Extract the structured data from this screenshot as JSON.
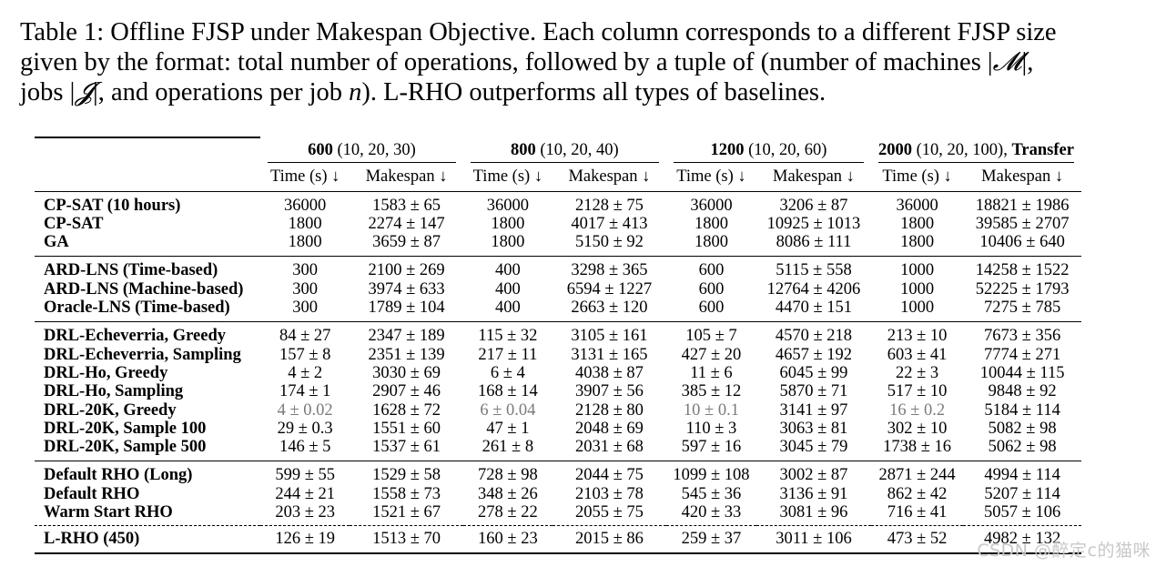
{
  "caption": {
    "line1": "Table 1: Offline FJSP under Makespan Objective. Each column corresponds to a different FJSP size",
    "line2_a": "given by the format: total number of operations, followed by a tuple of (number of machines |",
    "line2_M": "𝓜",
    "line2_b": "|,",
    "line3_a": "jobs |",
    "line3_J": "𝓙",
    "line3_b": "|, and operations per job ",
    "line3_n": "n",
    "line3_c": "). L-RHO outperforms all types of baselines."
  },
  "table": {
    "groups": [
      {
        "bold": "600",
        "rest": " (10, 20, 30)",
        "suffix": ""
      },
      {
        "bold": "800",
        "rest": " (10, 20, 40)",
        "suffix": ""
      },
      {
        "bold": "1200",
        "rest": " (10, 20, 60)",
        "suffix": ""
      },
      {
        "bold": "2000",
        "rest": " (10, 20, 100), ",
        "suffix": "Transfer"
      }
    ],
    "subheaders": [
      "Time (s) ↓",
      "Makespan ↓",
      "Time (s) ↓",
      "Makespan ↓",
      "Time (s) ↓",
      "Makespan ↓",
      "Time (s) ↓",
      "Makespan ↓"
    ],
    "rows": [
      {
        "method": "CP-SAT (10 hours)",
        "cells": [
          "36000",
          "1583 ± 65",
          "36000",
          "2128 ± 75",
          "36000",
          "3206 ± 87",
          "36000",
          "18821 ± 1986"
        ]
      },
      {
        "method": "CP-SAT",
        "cells": [
          "1800",
          "2274 ± 147",
          "1800",
          "4017 ± 413",
          "1800",
          "10925 ± 1013",
          "1800",
          "39585 ± 2707"
        ]
      },
      {
        "method": "GA",
        "cells": [
          "1800",
          "3659 ± 87",
          "1800",
          "5150 ± 92",
          "1800",
          "8086 ± 111",
          "1800",
          "10406 ± 640"
        ]
      },
      {
        "method": "ARD-LNS (Time-based)",
        "cells": [
          "300",
          "2100 ± 269",
          "400",
          "3298 ± 365",
          "600",
          "5115 ± 558",
          "1000",
          "14258 ± 1522"
        ]
      },
      {
        "method": "ARD-LNS (Machine-based)",
        "cells": [
          "300",
          "3974 ± 633",
          "400",
          "6594 ± 1227",
          "600",
          "12764 ± 4206",
          "1000",
          "52225 ± 1793"
        ]
      },
      {
        "method": "Oracle-LNS (Time-based)",
        "cells": [
          "300",
          "1789 ± 104",
          "400",
          "2663 ± 120",
          "600",
          "4470 ± 151",
          "1000",
          "7275 ± 785"
        ]
      },
      {
        "method": "DRL-Echeverria, Greedy",
        "cells": [
          "84 ± 27",
          "2347 ± 189",
          "115 ± 32",
          "3105 ± 161",
          "105 ± 7",
          "4570 ± 218",
          "213 ± 10",
          "7673 ± 356"
        ]
      },
      {
        "method": "DRL-Echeverria, Sampling",
        "cells": [
          "157 ± 8",
          "2351 ± 139",
          "217 ± 11",
          "3131 ± 165",
          "427 ± 20",
          "4657 ± 192",
          "603 ± 41",
          "7774 ± 271"
        ]
      },
      {
        "method": "DRL-Ho, Greedy",
        "cells": [
          "4 ± 2",
          "3030 ± 69",
          "6 ± 4",
          "4038 ± 87",
          "11 ± 6",
          "6045 ± 99",
          "22 ± 3",
          "10044 ± 115"
        ]
      },
      {
        "method": "DRL-Ho, Sampling",
        "cells": [
          "174 ± 1",
          "2907 ± 46",
          "168 ± 14",
          "3907 ± 56",
          "385 ± 12",
          "5870 ± 71",
          "517 ± 10",
          "9848 ± 92"
        ]
      },
      {
        "method": "DRL-20K, Greedy",
        "cells": [
          "4 ± 0.02",
          "1628 ± 72",
          "6 ± 0.04",
          "2128 ± 80",
          "10 ± 0.1",
          "3141 ± 97",
          "16 ± 0.2",
          "5184 ± 114"
        ]
      },
      {
        "method": "DRL-20K, Sample 100",
        "cells": [
          "29 ± 0.3",
          "1551 ± 60",
          "47 ± 1",
          "2048 ± 69",
          "110 ± 3",
          "3063 ± 81",
          "302 ± 10",
          "5082 ± 98"
        ]
      },
      {
        "method": "DRL-20K, Sample 500",
        "cells": [
          "146 ± 5",
          "1537 ± 61",
          "261 ± 8",
          "2031 ± 68",
          "597 ± 16",
          "3045 ± 79",
          "1738 ± 16",
          "5062 ± 98"
        ]
      },
      {
        "method": "Default RHO (Long)",
        "cells": [
          "599 ± 55",
          "1529 ± 58",
          "728 ± 98",
          "2044 ± 75",
          "1099 ± 108",
          "3002 ± 87",
          "2871 ± 244",
          "4994 ± 114"
        ]
      },
      {
        "method": "Default RHO",
        "cells": [
          "244 ± 21",
          "1558 ± 73",
          "348 ± 26",
          "2103 ± 78",
          "545 ± 36",
          "3136 ± 91",
          "862 ± 42",
          "5207 ± 114"
        ]
      },
      {
        "method": "Warm Start RHO",
        "cells": [
          "203 ± 23",
          "1521 ± 67",
          "278 ± 22",
          "2055 ± 75",
          "420 ± 33",
          "3081 ± 96",
          "716 ± 41",
          "5057 ± 106"
        ]
      },
      {
        "method": "L-RHO (450)",
        "cells": [
          "126 ± 19",
          "1513 ± 70",
          "160 ± 23",
          "2015 ± 86",
          "259 ± 37",
          "3011 ± 106",
          "473 ± 52",
          "4982 ± 132"
        ]
      }
    ]
  },
  "watermark": "CSDN @醉定c的猫咪"
}
